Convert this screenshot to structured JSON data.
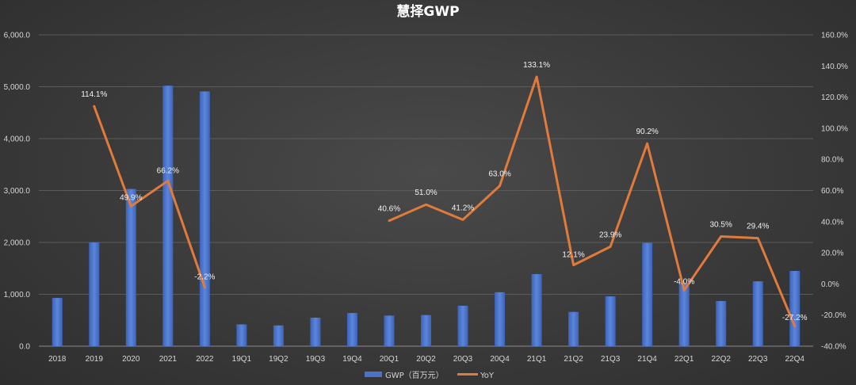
{
  "chart_data": {
    "type": "bar+line",
    "title": "慧择GWP",
    "categories": [
      "2018",
      "2019",
      "2020",
      "2021",
      "2022",
      "19Q1",
      "19Q2",
      "19Q3",
      "19Q4",
      "20Q1",
      "20Q2",
      "20Q3",
      "20Q4",
      "21Q1",
      "21Q2",
      "21Q3",
      "21Q4",
      "22Q1",
      "22Q2",
      "22Q3",
      "22Q4"
    ],
    "series": [
      {
        "name": "GWP（百万元）",
        "type": "bar",
        "axis": "left",
        "color": "#4a72c8",
        "values": [
          930,
          2000,
          3030,
          5020,
          4910,
          420,
          400,
          550,
          640,
          590,
          600,
          780,
          1040,
          1390,
          660,
          960,
          1990,
          1210,
          870,
          1250,
          1450
        ]
      },
      {
        "name": "YoY",
        "type": "line",
        "axis": "right",
        "color": "#e07b3c",
        "values": [
          null,
          114.1,
          49.9,
          66.2,
          -2.2,
          null,
          null,
          null,
          null,
          40.6,
          51.0,
          41.2,
          63.0,
          133.1,
          12.1,
          23.9,
          90.2,
          -4.0,
          30.5,
          29.4,
          -27.2
        ],
        "labels": [
          "",
          "114.1%",
          "49.9%",
          "66.2%",
          "-2.2%",
          "",
          "",
          "",
          "",
          "40.6%",
          "51.0%",
          "41.2%",
          "63.0%",
          "133.1%",
          "12.1%",
          "23.9%",
          "90.2%",
          "-4.0%",
          "30.5%",
          "29.4%",
          "-27.2%"
        ]
      }
    ],
    "yleft": {
      "lim": [
        0,
        6000
      ],
      "ticks": [
        0,
        1000,
        2000,
        3000,
        4000,
        5000,
        6000
      ],
      "tick_labels": [
        "0.0",
        "1,000.0",
        "2,000.0",
        "3,000.0",
        "4,000.0",
        "5,000.0",
        "6,000.0"
      ]
    },
    "yright": {
      "lim": [
        -40,
        160
      ],
      "ticks": [
        -40,
        -20,
        0,
        20,
        40,
        60,
        80,
        100,
        120,
        140,
        160
      ],
      "tick_labels": [
        "-40.0%",
        "-20.0%",
        "0.0%",
        "20.0%",
        "40.0%",
        "60.0%",
        "80.0%",
        "100.0%",
        "120.0%",
        "140.0%",
        "160.0%"
      ]
    },
    "grid": true,
    "legend_position": "bottom"
  }
}
